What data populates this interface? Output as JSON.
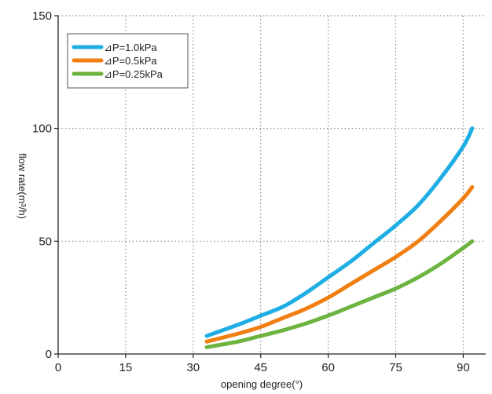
{
  "chart_data": {
    "type": "line",
    "title": "",
    "xlabel": "opening degree(°)",
    "ylabel": "flow rate(m³/h)",
    "xlim": [
      0,
      95
    ],
    "ylim": [
      0,
      150
    ],
    "xticks": [
      0,
      15,
      30,
      45,
      60,
      75,
      90
    ],
    "yticks": [
      0,
      50,
      100,
      150
    ],
    "grid": true,
    "legend_position": "top-left",
    "series": [
      {
        "name": "⊿P=1.0kPa",
        "color": "#1eaee4",
        "x": [
          33,
          40,
          45,
          50,
          55,
          60,
          65,
          70,
          75,
          80,
          85,
          90,
          92
        ],
        "y": [
          8,
          13,
          17,
          21,
          27,
          34,
          41,
          49,
          57,
          66,
          78,
          92,
          100
        ]
      },
      {
        "name": "⊿P=0.5kPa",
        "color": "#f07f12",
        "x": [
          33,
          40,
          45,
          50,
          55,
          60,
          65,
          70,
          75,
          80,
          85,
          90,
          92
        ],
        "y": [
          5.5,
          9,
          12,
          16,
          20,
          25,
          31,
          37,
          43,
          50,
          59,
          69,
          74
        ]
      },
      {
        "name": "⊿P=0.25kPa",
        "color": "#6db33f",
        "x": [
          33,
          40,
          45,
          50,
          55,
          60,
          65,
          70,
          75,
          80,
          85,
          90,
          92
        ],
        "y": [
          3,
          5.5,
          8,
          10.5,
          13.5,
          17,
          21,
          25,
          29,
          34,
          40,
          47,
          50
        ]
      }
    ]
  }
}
